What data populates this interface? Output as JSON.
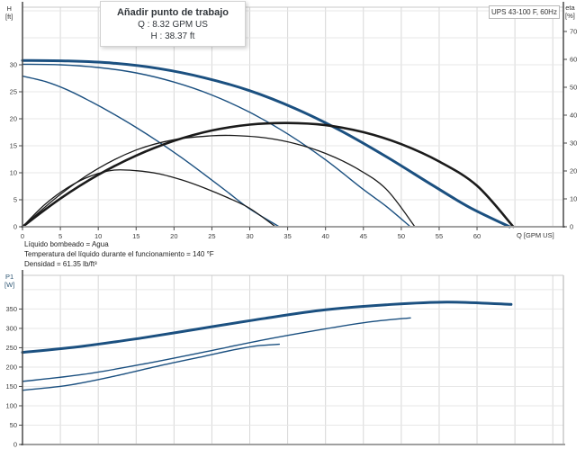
{
  "tooltip": {
    "title": "Añadir punto de trabajo",
    "line_q": "Q : 8.32 GPM US",
    "line_h": "H : 38.37 ft"
  },
  "info": {
    "liquid": "Líquido bombeado = Agua",
    "temperature": "Temperatura del líquido durante el funcionamiento = 140 °F",
    "density": "Densidad = 61.35 lb/ft³"
  },
  "colors": {
    "curve_blue": "#1b5080",
    "curve_black": "#1b1b1b",
    "grid_h": "#e7e7e7",
    "grid_v": "#d7d7d7",
    "axis_dark": "#4a4a4a",
    "axis_gray": "#a0a0a0",
    "border_light": "#c9c9c9",
    "tick_text": "#3c3c3c"
  },
  "chart_data": [
    {
      "id": "hq-eta-chart",
      "type": "line",
      "title": "UPS 43-100 F, 60Hz",
      "x": {
        "label": "Q [GPM US]",
        "min": 0,
        "max": 71.4,
        "grid_step": 5,
        "labeled_ticks": [
          0,
          5,
          10,
          15,
          20,
          25,
          30,
          35,
          40,
          45,
          50,
          55,
          60
        ]
      },
      "y_left": {
        "name": "H",
        "unit": "[ft]",
        "min": 0,
        "max": 40.67,
        "labeled_ticks": [
          0,
          5,
          10,
          15,
          20,
          25,
          30
        ],
        "grid_ticks": [
          5,
          10,
          15,
          20,
          25,
          30,
          35,
          40
        ]
      },
      "y_right": {
        "name": "eta",
        "unit": "[%]",
        "min": 0,
        "max": 78.7,
        "labeled_ticks": [
          0,
          10,
          20,
          30,
          40,
          50,
          60,
          70
        ]
      },
      "series": [
        {
          "name": "head-speed-3",
          "axis": "left",
          "color": "curve_blue",
          "width": 3,
          "points": [
            [
              0,
              30.8
            ],
            [
              6,
              30.7
            ],
            [
              12,
              30.3
            ],
            [
              18,
              29.3
            ],
            [
              24,
              27.6
            ],
            [
              30,
              25.2
            ],
            [
              36,
              21.9
            ],
            [
              42,
              17.8
            ],
            [
              48,
              13.0
            ],
            [
              54,
              7.8
            ],
            [
              59,
              3.6
            ],
            [
              64.3,
              0
            ]
          ]
        },
        {
          "name": "head-speed-2",
          "axis": "left",
          "color": "curve_blue",
          "width": 1.4,
          "points": [
            [
              0,
              30.1
            ],
            [
              5,
              30.0
            ],
            [
              10,
              29.5
            ],
            [
              15,
              28.5
            ],
            [
              20,
              26.8
            ],
            [
              25,
              24.4
            ],
            [
              30,
              21.2
            ],
            [
              35,
              17.2
            ],
            [
              40,
              12.4
            ],
            [
              45,
              6.9
            ],
            [
              48,
              3.8
            ],
            [
              51.2,
              0
            ]
          ]
        },
        {
          "name": "head-speed-1",
          "axis": "left",
          "color": "curve_blue",
          "width": 1.4,
          "points": [
            [
              0,
              27.9
            ],
            [
              3,
              26.9
            ],
            [
              6,
              25.3
            ],
            [
              9,
              23.2
            ],
            [
              12,
              20.9
            ],
            [
              15,
              18.4
            ],
            [
              18,
              15.7
            ],
            [
              21,
              12.8
            ],
            [
              24,
              9.7
            ],
            [
              27,
              6.5
            ],
            [
              30,
              3.3
            ],
            [
              33.9,
              0
            ]
          ]
        },
        {
          "name": "efficiency-speed-3",
          "axis": "right",
          "color": "curve_black",
          "width": 2.6,
          "points": [
            [
              0,
              0
            ],
            [
              5,
              10.1
            ],
            [
              10,
              18.6
            ],
            [
              15,
              25.5
            ],
            [
              20,
              30.8
            ],
            [
              25,
              34.5
            ],
            [
              30,
              36.6
            ],
            [
              35,
              37.2
            ],
            [
              40,
              36.4
            ],
            [
              45,
              33.9
            ],
            [
              50,
              29.6
            ],
            [
              55,
              23.4
            ],
            [
              60,
              14.7
            ],
            [
              64.8,
              0
            ]
          ]
        },
        {
          "name": "efficiency-speed-2",
          "axis": "right",
          "color": "curve_black",
          "width": 1.3,
          "points": [
            [
              0,
              0
            ],
            [
              5,
              11.6
            ],
            [
              10,
              20.9
            ],
            [
              15,
              27.5
            ],
            [
              20,
              31.2
            ],
            [
              25,
              32.6
            ],
            [
              28,
              32.7
            ],
            [
              32,
              31.9
            ],
            [
              36,
              29.8
            ],
            [
              40,
              26.3
            ],
            [
              44,
              21.1
            ],
            [
              48,
              13.5
            ],
            [
              51.8,
              0
            ]
          ]
        },
        {
          "name": "efficiency-speed-1",
          "axis": "right",
          "color": "curve_black",
          "width": 1.3,
          "points": [
            [
              0,
              0
            ],
            [
              3,
              8.1
            ],
            [
              6,
              14.1
            ],
            [
              9,
              18.2
            ],
            [
              12,
              20.3
            ],
            [
              15,
              20.1
            ],
            [
              18,
              19.0
            ],
            [
              21,
              16.8
            ],
            [
              24,
              13.9
            ],
            [
              27,
              10.5
            ],
            [
              30,
              6.6
            ],
            [
              33.4,
              0
            ]
          ]
        }
      ]
    },
    {
      "id": "power-chart",
      "type": "line",
      "title": "",
      "x": {
        "label": "",
        "min": 0,
        "max": 71.4,
        "grid_step": 5,
        "labeled_ticks": []
      },
      "y_left": {
        "name": "P1",
        "unit": "[W]",
        "min": 0,
        "max": 437,
        "labeled_ticks": [
          0,
          50,
          100,
          150,
          200,
          250,
          300,
          350
        ],
        "grid_ticks": [
          50,
          100,
          150,
          200,
          250,
          300,
          350,
          400
        ]
      },
      "series": [
        {
          "name": "power-speed-3",
          "axis": "left",
          "color": "curve_blue",
          "width": 3,
          "points": [
            [
              0,
              238
            ],
            [
              8,
              254
            ],
            [
              16,
              276
            ],
            [
              24,
              301
            ],
            [
              32,
              326
            ],
            [
              40,
              348
            ],
            [
              48,
              361
            ],
            [
              56,
              368
            ],
            [
              64.5,
              362
            ]
          ]
        },
        {
          "name": "power-speed-2",
          "axis": "left",
          "color": "curve_blue",
          "width": 1.4,
          "points": [
            [
              0,
              163
            ],
            [
              8,
              181
            ],
            [
              16,
              208
            ],
            [
              24,
              239
            ],
            [
              32,
              271
            ],
            [
              40,
              299
            ],
            [
              46,
              317
            ],
            [
              51.2,
              327
            ]
          ]
        },
        {
          "name": "power-speed-1",
          "axis": "left",
          "color": "curve_blue",
          "width": 1.4,
          "points": [
            [
              0,
              140
            ],
            [
              6,
              153
            ],
            [
              12,
              176
            ],
            [
              18,
              203
            ],
            [
              24,
              228
            ],
            [
              28,
              245
            ],
            [
              31,
              255
            ],
            [
              33.9,
              259
            ]
          ]
        }
      ]
    }
  ]
}
